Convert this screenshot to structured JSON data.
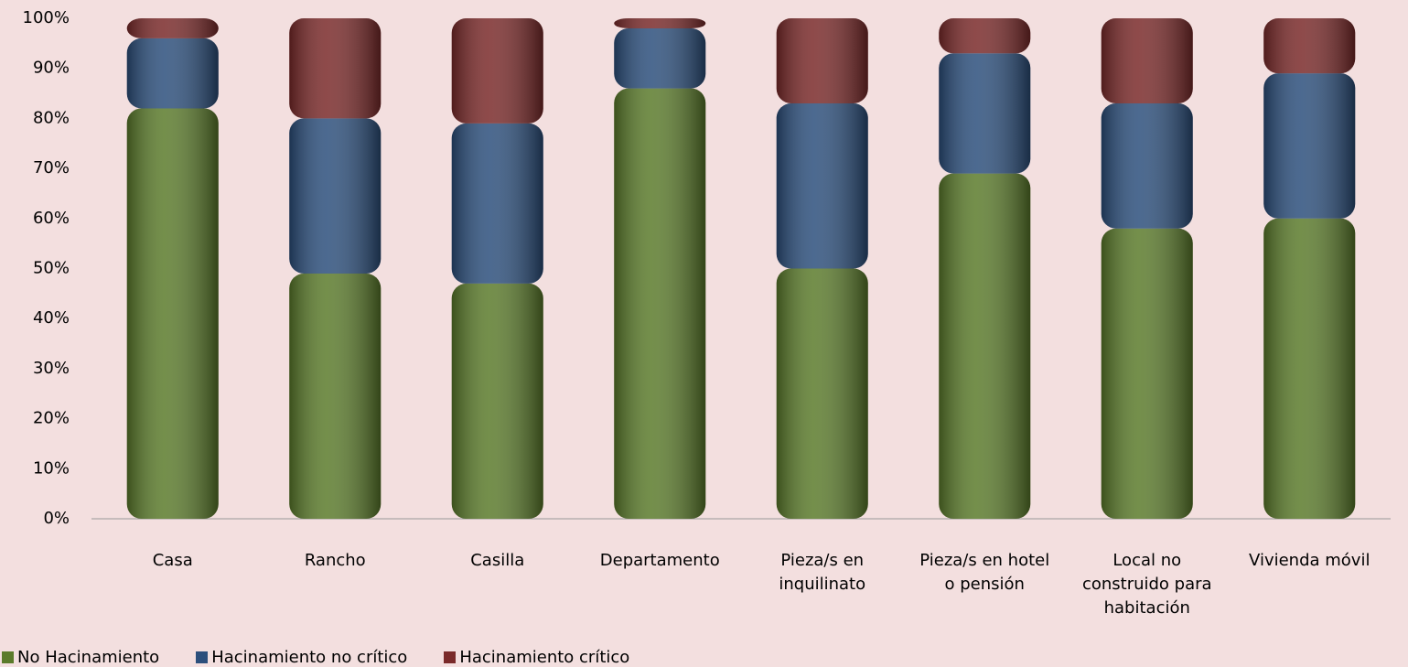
{
  "chart_data": {
    "type": "stacked_bar",
    "categories": [
      "Casa",
      "Rancho",
      "Casilla",
      "Departamento",
      "Pieza/s en inquilinato",
      "Pieza/s en hotel o pensión",
      "Local no construido para habitación",
      "Vivienda móvil"
    ],
    "series": [
      {
        "name": "No Hacinamiento",
        "color": "#5b7b2b",
        "values": [
          82,
          49,
          47,
          86,
          50,
          69,
          58,
          60
        ]
      },
      {
        "name": "Hacinamiento no crítico",
        "color": "#2c4f7c",
        "values": [
          14,
          31,
          32,
          12,
          33,
          24,
          25,
          29
        ]
      },
      {
        "name": "Hacinamiento crítico",
        "color": "#7a2a2a",
        "values": [
          4,
          20,
          21,
          2,
          17,
          7,
          17,
          11
        ]
      }
    ],
    "ylim": [
      0,
      100
    ],
    "yticks": [
      {
        "value": 0,
        "label": "0%"
      },
      {
        "value": 10,
        "label": "10%"
      },
      {
        "value": 20,
        "label": "20%"
      },
      {
        "value": 30,
        "label": "30%"
      },
      {
        "value": 40,
        "label": "40%"
      },
      {
        "value": 50,
        "label": "50%"
      },
      {
        "value": 60,
        "label": "60%"
      },
      {
        "value": 70,
        "label": "70%"
      },
      {
        "value": 80,
        "label": "80%"
      },
      {
        "value": 90,
        "label": "90%"
      },
      {
        "value": 100,
        "label": "100%"
      }
    ],
    "grid": false,
    "legend": "bottom-left"
  }
}
